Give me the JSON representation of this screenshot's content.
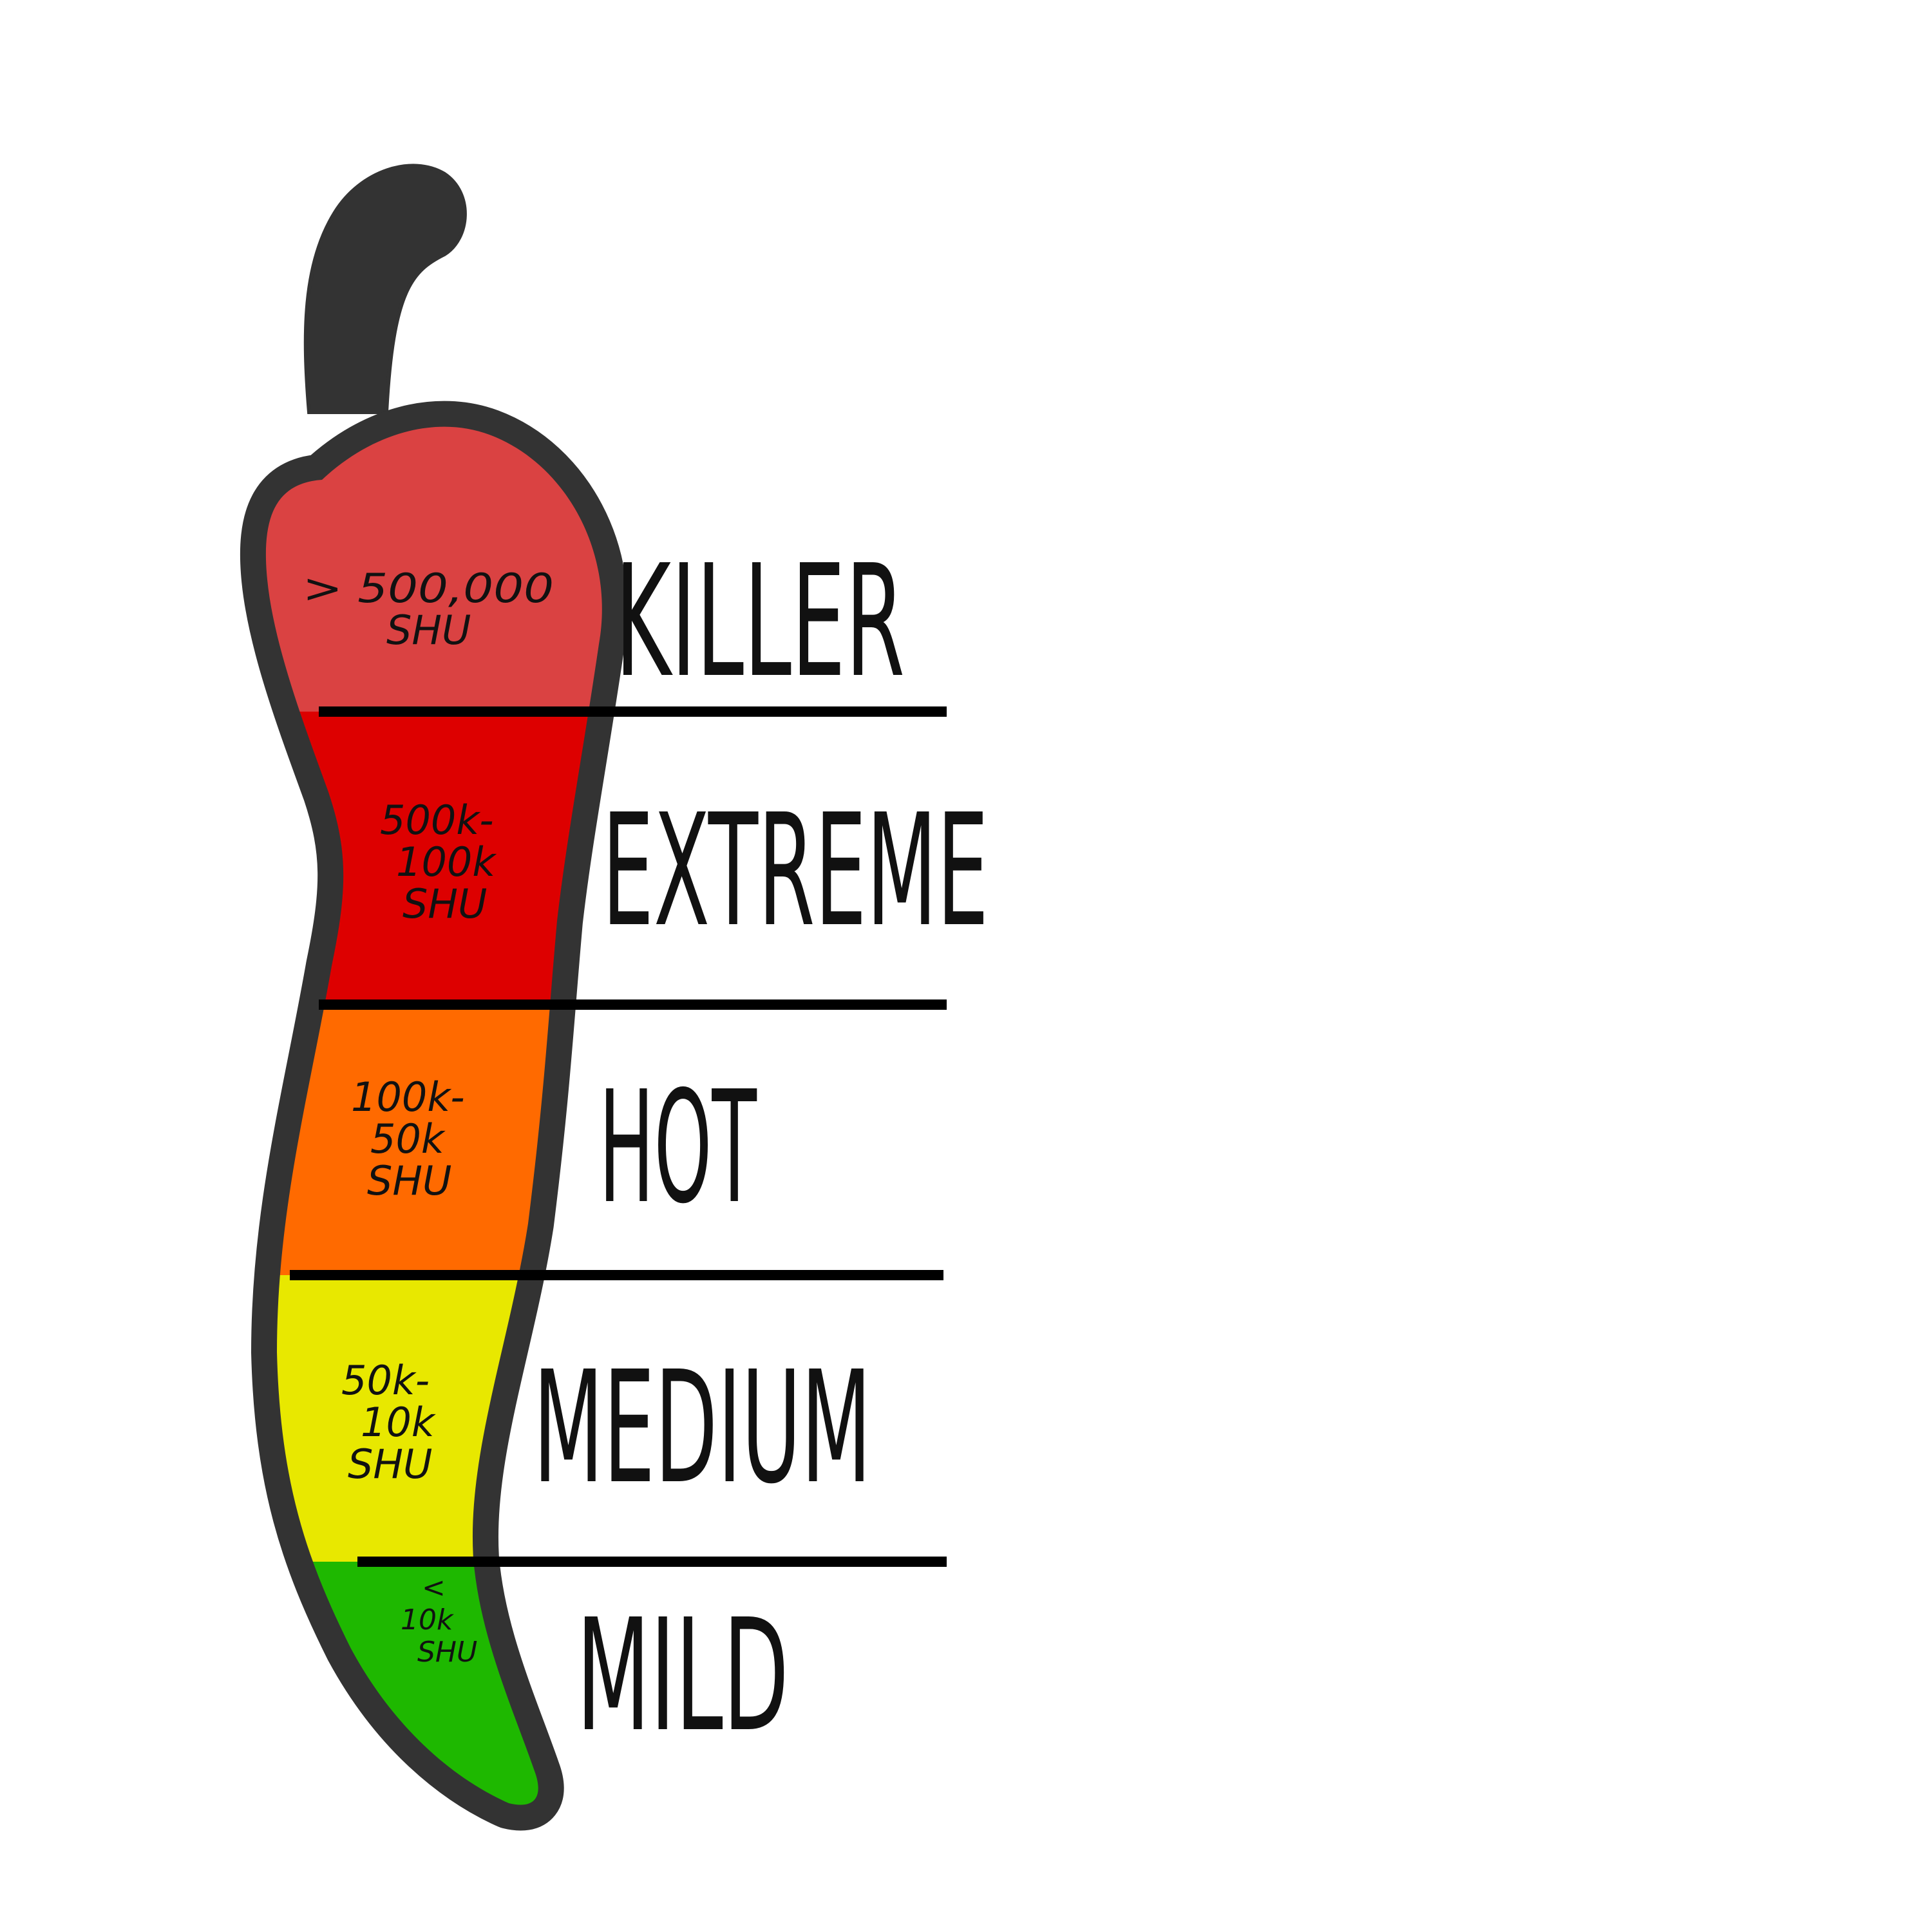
{
  "tiers": [
    {
      "label": "KILLER",
      "range": [
        "> 500,000",
        "SHU"
      ],
      "color": "#DA4242"
    },
    {
      "label": "EXTREME",
      "range": [
        "500k-",
        "100k",
        "SHU"
      ],
      "color": "#DD0000"
    },
    {
      "label": "HOT",
      "range": [
        "100k-",
        "50k",
        "SHU"
      ],
      "color": "#FF6A00"
    },
    {
      "label": "MEDIUM",
      "range": [
        "50k-",
        "10k",
        "SHU"
      ],
      "color": "#E8E800"
    },
    {
      "label": "MILD",
      "range": [
        "<",
        "10k",
        "SHU"
      ],
      "color": "#1EB800"
    }
  ],
  "colors": {
    "outline": "#333333",
    "divider": "#000000",
    "background": "#FFFFFF"
  },
  "icons": {
    "pepper": "chili-pepper-icon"
  }
}
